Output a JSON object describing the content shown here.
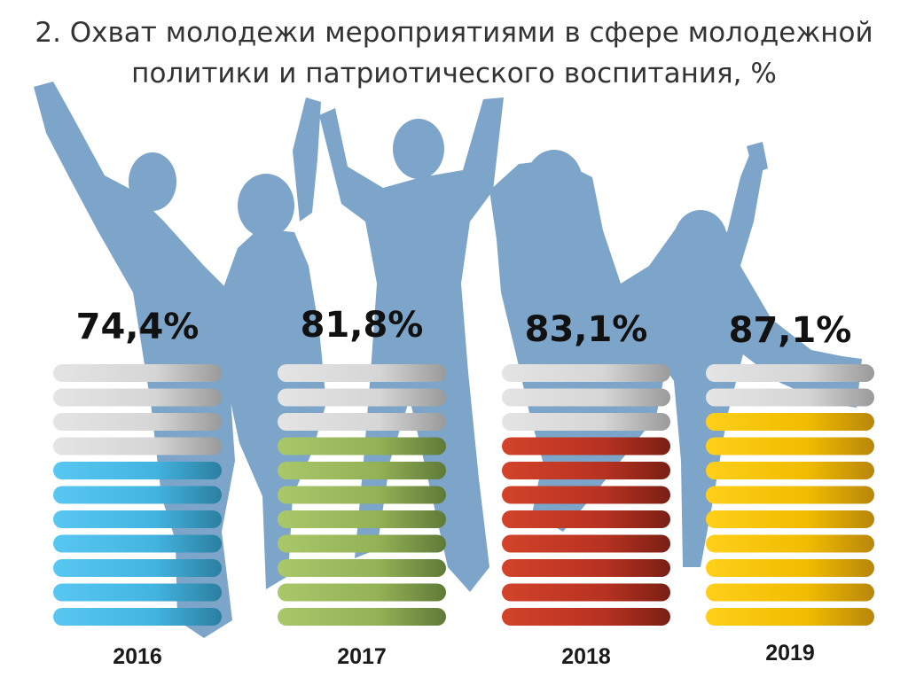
{
  "title": {
    "line1": "2. Охват молодежи мероприятиями в сфере молодежной",
    "line2": "политики и патриотического воспитания, %"
  },
  "chart_data": {
    "type": "bar",
    "title": "2. Охват молодежи мероприятиями в сфере молодежной политики и патриотического воспитания, %",
    "unit": "%",
    "categories": [
      "2016",
      "2017",
      "2018",
      "2019"
    ],
    "values": [
      74.4,
      81.8,
      83.1,
      87.1
    ],
    "value_labels": [
      "74,4%",
      "81,8%",
      "83,1%",
      "87,1%"
    ],
    "total_stripes": 11,
    "filled_stripes": [
      7,
      8,
      8,
      9
    ],
    "colors": [
      "#4fc0ea",
      "#9bbb59",
      "#c0392b",
      "#f5c000"
    ],
    "empty_color": "#d9d9d9",
    "background": "#7da4c9",
    "ylim": [
      0,
      100
    ],
    "grid": false,
    "legend": "none"
  }
}
